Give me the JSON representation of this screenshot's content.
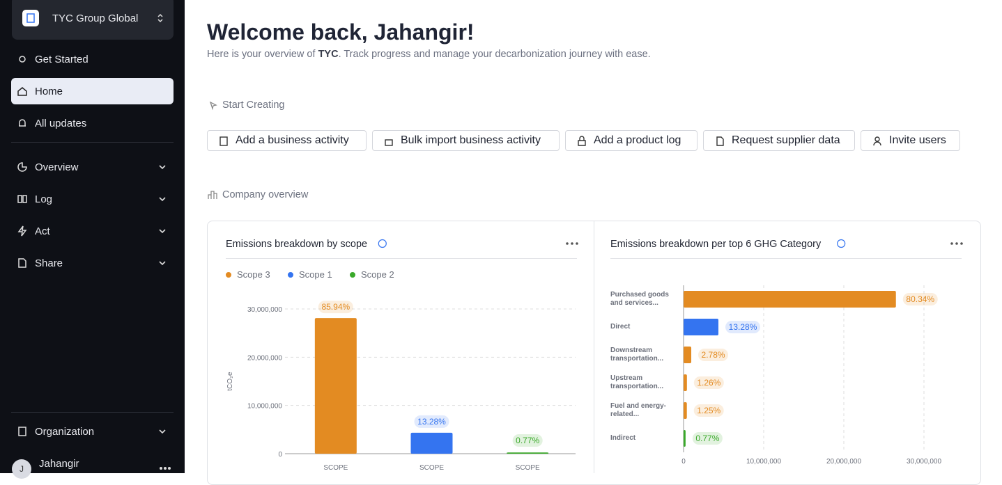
{
  "sidebar": {
    "org": "TYC Group Global",
    "nav_top": [
      "Get Started",
      "Home",
      "All updates"
    ],
    "nav_sections": [
      "Overview",
      "Log",
      "Act",
      "Share"
    ],
    "organization": "Organization",
    "user": {
      "initial": "J",
      "name": "Jahangir"
    }
  },
  "header": {
    "title": "Welcome back, Jahangir!",
    "subtitle": [
      "Here is your overview of ",
      "TYC",
      ". Track progress and manage your decarbonization journey with ease."
    ]
  },
  "start_creating": {
    "label": "Start Creating",
    "actions": [
      "Add a business activity",
      "Bulk import business activity",
      "Add a product log",
      "Request supplier data",
      "Invite users"
    ]
  },
  "company_overview": {
    "label": "Company overview"
  },
  "chart_data": [
    {
      "type": "bar",
      "title": "Emissions breakdown by scope",
      "ylabel": "tCO₂e",
      "legend": "top",
      "grid": true,
      "categories": [
        "SCOPE",
        "SCOPE",
        "SCOPE"
      ],
      "series": [
        {
          "name": "Scope 3",
          "color": "#e38b22",
          "values": [
            28100000,
            null,
            null
          ]
        },
        {
          "name": "Scope 1",
          "color": "#3474f0",
          "values": [
            null,
            4340000,
            null
          ]
        },
        {
          "name": "Scope 2",
          "color": "#3aa92a",
          "values": [
            null,
            null,
            250000
          ]
        }
      ],
      "shares": [
        {
          "value": 85.94,
          "label": "85.94%"
        },
        {
          "value": 13.28,
          "label": "13.28%"
        },
        {
          "value": 0.77,
          "label": "0.77%"
        }
      ],
      "ylim": [
        0,
        30000000
      ],
      "yticks": [
        0,
        {
          "value": 10000000,
          "label": "10,000,000"
        },
        {
          "value": 20000000,
          "label": "20,000,000"
        },
        {
          "value": 30000000,
          "label": "30,000,000"
        }
      ]
    },
    {
      "type": "bar",
      "orientation": "horizontal",
      "title": "Emissions breakdown per top 6 GHG Category",
      "grid": true,
      "categories": [
        "Purchased goods and services...",
        "Direct",
        "Downstream transportation...",
        "Upstream transportation...",
        "Fuel and energy-related...",
        "Indirect"
      ],
      "values": [
        26500000,
        4350000,
        960000,
        420000,
        410000,
        250000
      ],
      "colors": [
        "#e38b22",
        "#3474f0",
        "#e38b22",
        "#e38b22",
        "#e38b22",
        "#3aa92a"
      ],
      "shares": [
        {
          "value": 80.34,
          "label": "80.34%"
        },
        {
          "value": 13.28,
          "label": "13.28%"
        },
        {
          "value": 2.78,
          "label": "2.78%"
        },
        {
          "value": 1.26,
          "label": "1.26%"
        },
        {
          "value": 1.25,
          "label": "1.25%"
        },
        {
          "value": 0.77,
          "label": "0.77%"
        }
      ],
      "xlim": [
        0,
        30000000
      ],
      "xticks": [
        0,
        {
          "value": 10000000,
          "label": "10,000,000"
        },
        {
          "value": 20000000,
          "label": "20,000,000"
        },
        {
          "value": 30000000,
          "label": "30,000,000"
        }
      ]
    }
  ]
}
